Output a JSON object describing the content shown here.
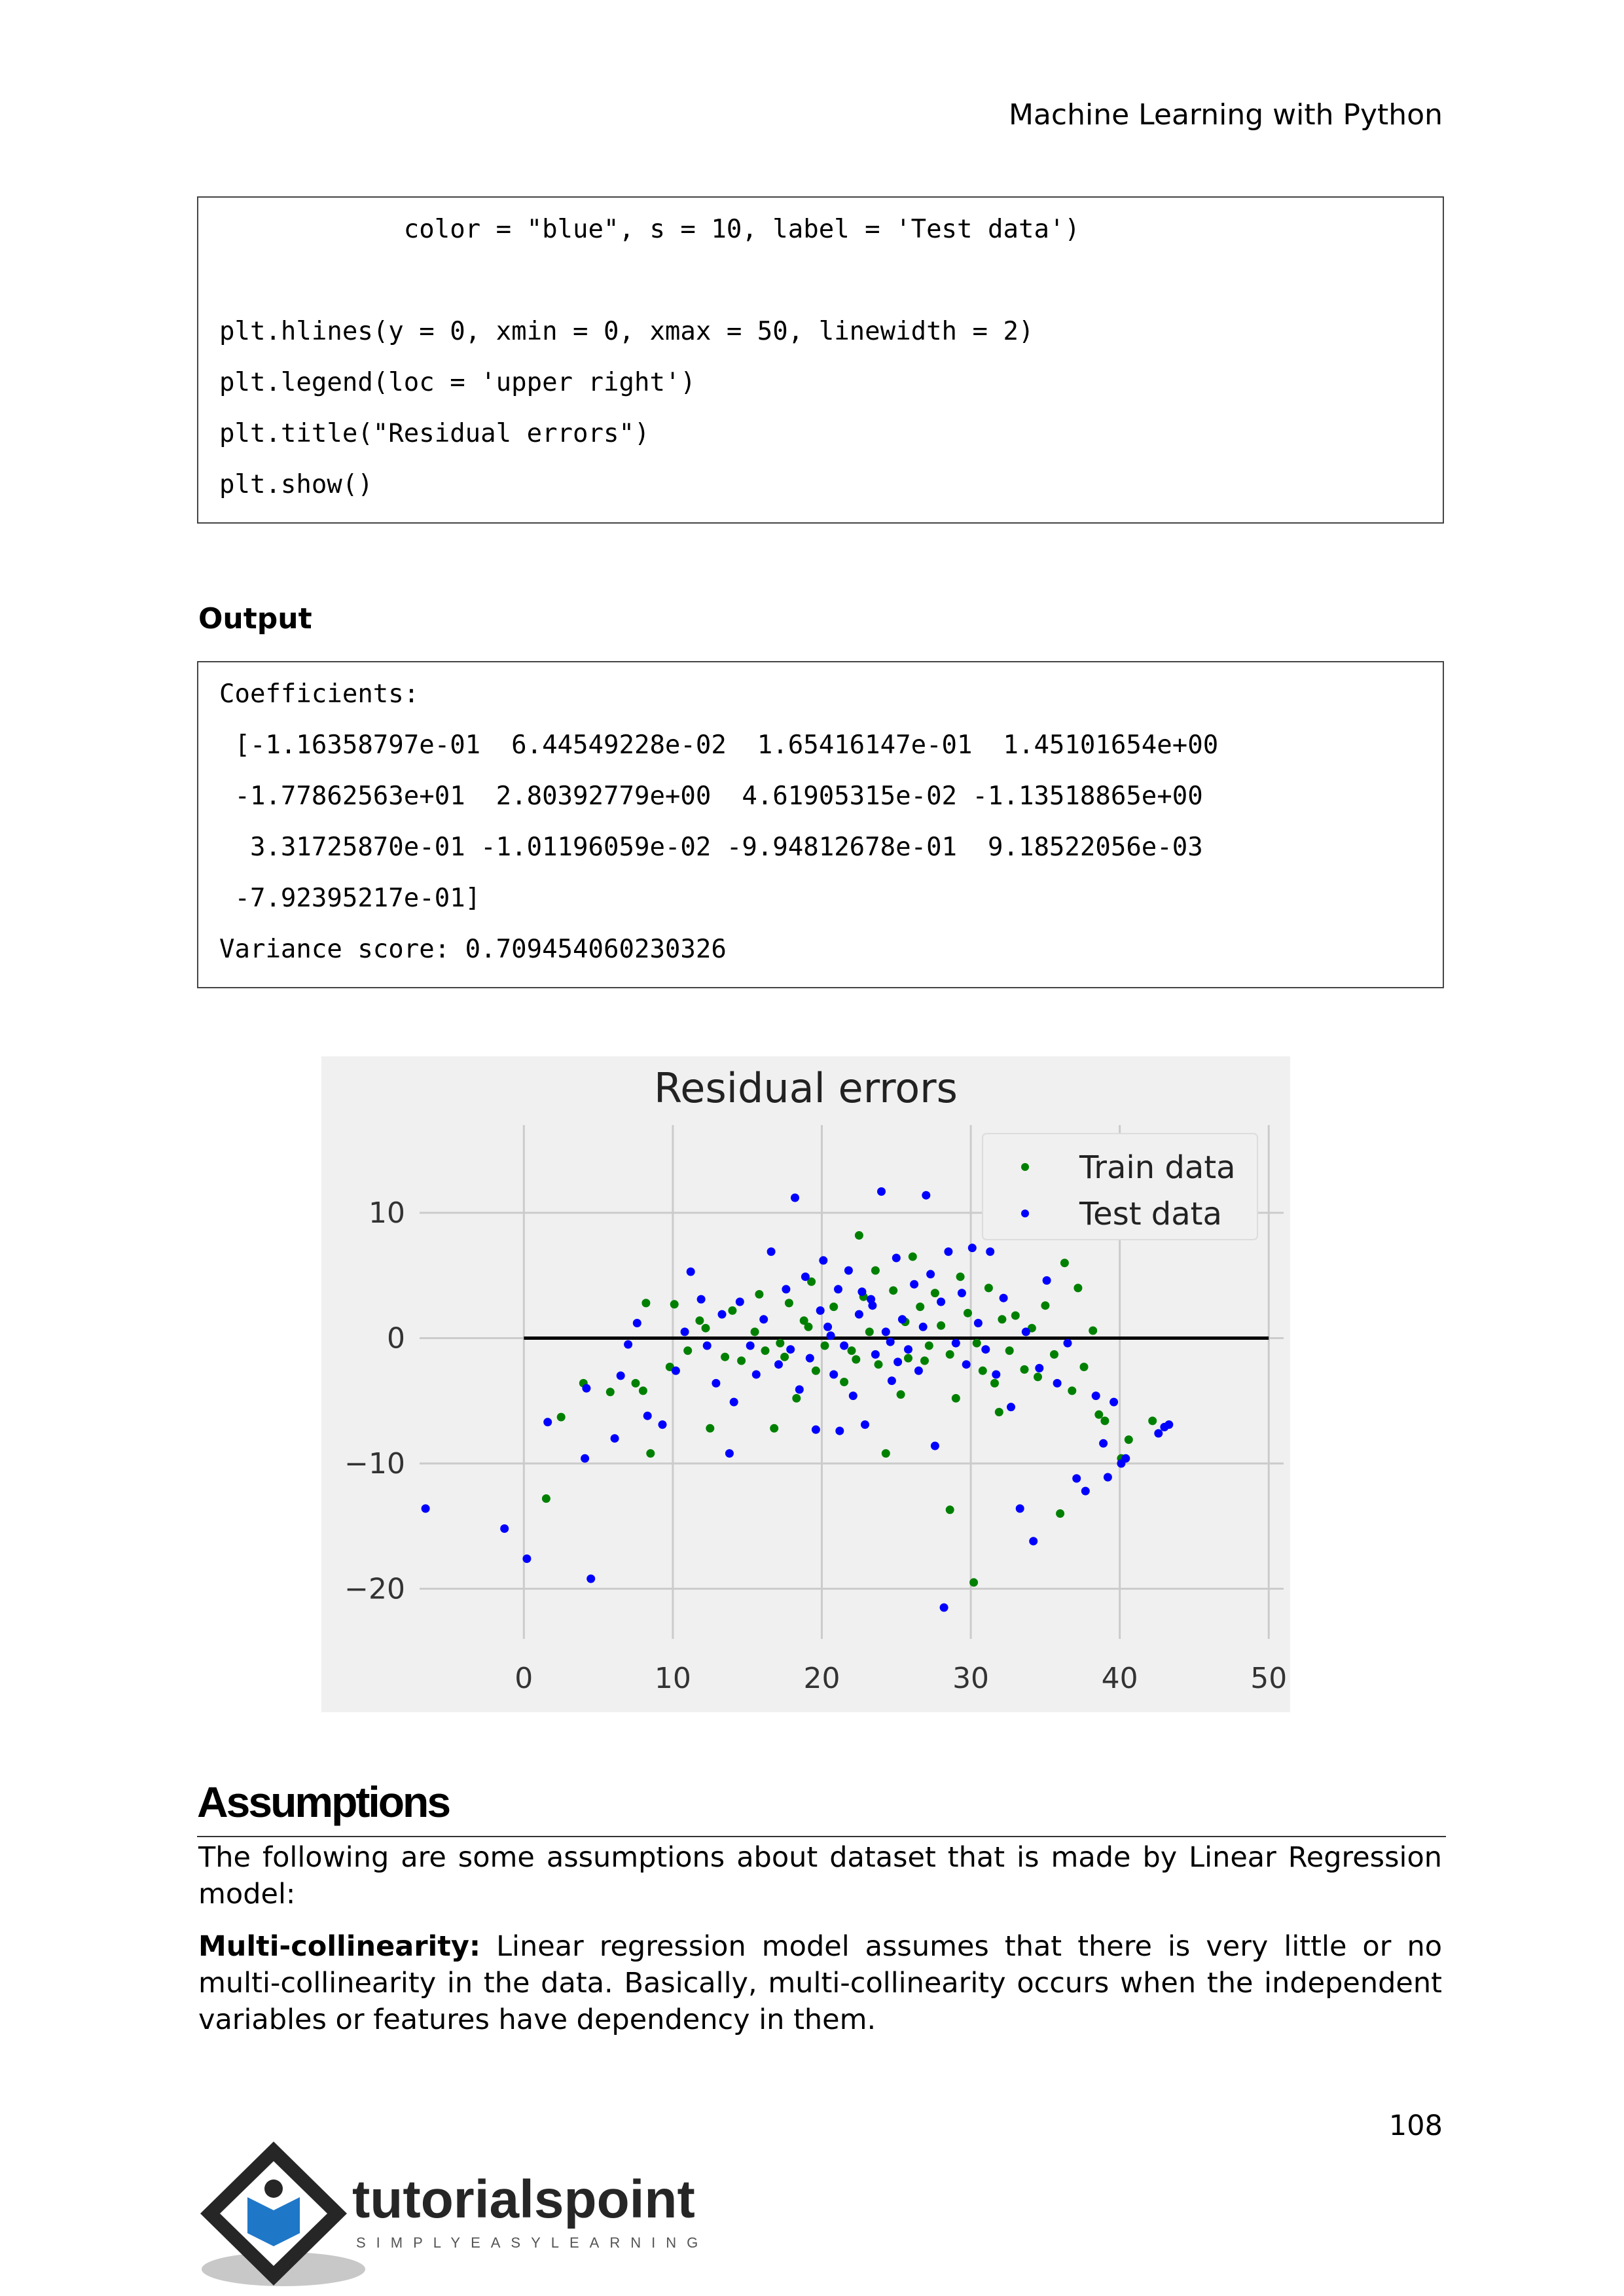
{
  "header": {
    "running_title": "Machine Learning with Python"
  },
  "code_block": {
    "lines": [
      "            color = \"blue\", s = 10, label = 'Test data')",
      "",
      "plt.hlines(y = 0, xmin = 0, xmax = 50, linewidth = 2)",
      "plt.legend(loc = 'upper right')",
      "plt.title(\"Residual errors\")",
      "plt.show()"
    ]
  },
  "output_label": "Output",
  "output_block": {
    "lines": [
      "Coefficients:",
      " [-1.16358797e-01  6.44549228e-02  1.65416147e-01  1.45101654e+00",
      " -1.77862563e+01  2.80392779e+00  4.61905315e-02 -1.13518865e+00",
      "  3.31725870e-01 -1.01196059e-02 -9.94812678e-01  9.18522056e-03",
      " -7.92395217e-01]",
      "Variance score: 0.709454060230326"
    ]
  },
  "chart_data": {
    "type": "scatter",
    "title": "Residual errors",
    "xlabel": "",
    "ylabel": "",
    "xlim": [
      -7,
      51
    ],
    "ylim": [
      -24,
      17
    ],
    "xticks": [
      0,
      10,
      20,
      30,
      40,
      50
    ],
    "xtick_labels": [
      "0",
      "10",
      "20",
      "30",
      "40",
      "50"
    ],
    "yticks": [
      -20,
      -10,
      0,
      10
    ],
    "ytick_labels": [
      "−20",
      "−10",
      "0",
      "10"
    ],
    "grid": true,
    "legend_position": "upper right",
    "hline": {
      "y": 0,
      "xmin": 0,
      "xmax": 50,
      "color": "#000000"
    },
    "series": [
      {
        "name": "Train data",
        "color": "#008000",
        "points": [
          [
            1.5,
            -12.8
          ],
          [
            2.5,
            -6.3
          ],
          [
            4,
            -3.6
          ],
          [
            5.8,
            -4.3
          ],
          [
            7.5,
            -3.6
          ],
          [
            8,
            -4.2
          ],
          [
            8.5,
            -9.2
          ],
          [
            8.2,
            2.8
          ],
          [
            9.8,
            -2.3
          ],
          [
            10.1,
            2.7
          ],
          [
            11,
            -1
          ],
          [
            11.8,
            1.4
          ],
          [
            12.2,
            0.8
          ],
          [
            12.5,
            -7.2
          ],
          [
            13.5,
            -1.5
          ],
          [
            14,
            2.2
          ],
          [
            14.6,
            -1.8
          ],
          [
            15.5,
            0.5
          ],
          [
            15.8,
            3.5
          ],
          [
            16.2,
            -1
          ],
          [
            16.8,
            -7.2
          ],
          [
            17.5,
            -1.5
          ],
          [
            17.8,
            2.8
          ],
          [
            18.3,
            -4.8
          ],
          [
            18.8,
            1.4
          ],
          [
            19.3,
            4.5
          ],
          [
            19.6,
            -2.6
          ],
          [
            20.2,
            -0.6
          ],
          [
            20.8,
            2.5
          ],
          [
            21.5,
            -3.5
          ],
          [
            22,
            -1
          ],
          [
            22.5,
            8.2
          ],
          [
            22.8,
            3.3
          ],
          [
            23.2,
            0.5
          ],
          [
            23.8,
            -2.1
          ],
          [
            24.3,
            -9.2
          ],
          [
            24.8,
            3.8
          ],
          [
            25.3,
            -4.5
          ],
          [
            25.8,
            -1.6
          ],
          [
            26.1,
            6.5
          ],
          [
            26.6,
            2.5
          ],
          [
            27.2,
            -0.6
          ],
          [
            27.6,
            3.6
          ],
          [
            28,
            1
          ],
          [
            28.6,
            -1.3
          ],
          [
            29,
            -4.8
          ],
          [
            29.3,
            4.9
          ],
          [
            29.8,
            2
          ],
          [
            30.2,
            -19.5
          ],
          [
            30.4,
            -0.4
          ],
          [
            30.8,
            -2.6
          ],
          [
            31.2,
            4
          ],
          [
            31.6,
            -3.6
          ],
          [
            32.1,
            1.5
          ],
          [
            32.6,
            -1
          ],
          [
            33,
            1.8
          ],
          [
            33.6,
            -2.5
          ],
          [
            34.1,
            0.8
          ],
          [
            34.5,
            -3.1
          ],
          [
            35,
            2.6
          ],
          [
            35.6,
            -1.3
          ],
          [
            36,
            -14
          ],
          [
            36.3,
            6
          ],
          [
            36.8,
            -4.2
          ],
          [
            37.2,
            4
          ],
          [
            37.6,
            -2.3
          ],
          [
            38.2,
            0.6
          ],
          [
            38.6,
            -6.1
          ],
          [
            39,
            -6.6
          ],
          [
            40.1,
            -9.6
          ],
          [
            40.6,
            -8.1
          ],
          [
            42.2,
            -6.6
          ],
          [
            28.6,
            -13.7
          ],
          [
            31.9,
            -5.9
          ],
          [
            25.6,
            1.3
          ],
          [
            22.3,
            -1.7
          ],
          [
            19.1,
            0.9
          ],
          [
            17.2,
            -0.4
          ],
          [
            23.6,
            5.4
          ],
          [
            26.9,
            -1.8
          ]
        ]
      },
      {
        "name": "Test data",
        "color": "#0000ff",
        "points": [
          [
            -6.6,
            -13.6
          ],
          [
            -1.3,
            -15.2
          ],
          [
            0.2,
            -17.6
          ],
          [
            1.6,
            -6.7
          ],
          [
            4.1,
            -9.6
          ],
          [
            4.5,
            -19.2
          ],
          [
            4.2,
            -4
          ],
          [
            6.1,
            -8
          ],
          [
            6.5,
            -3
          ],
          [
            7,
            -0.5
          ],
          [
            7.6,
            1.2
          ],
          [
            8.3,
            -6.2
          ],
          [
            9.3,
            -6.9
          ],
          [
            10.2,
            -2.6
          ],
          [
            10.8,
            0.5
          ],
          [
            11.2,
            5.3
          ],
          [
            11.9,
            3.1
          ],
          [
            12.3,
            -0.6
          ],
          [
            12.9,
            -3.6
          ],
          [
            13.3,
            1.9
          ],
          [
            13.8,
            -9.2
          ],
          [
            14.1,
            -5.1
          ],
          [
            14.5,
            2.9
          ],
          [
            15.2,
            -0.6
          ],
          [
            15.6,
            -2.9
          ],
          [
            16.1,
            1.5
          ],
          [
            16.6,
            6.9
          ],
          [
            17.1,
            -2.1
          ],
          [
            17.6,
            3.9
          ],
          [
            17.9,
            -0.9
          ],
          [
            18.2,
            11.2
          ],
          [
            18.5,
            -4.1
          ],
          [
            18.9,
            4.9
          ],
          [
            19.2,
            -1.6
          ],
          [
            19.6,
            -7.3
          ],
          [
            20.1,
            6.2
          ],
          [
            20.4,
            0.9
          ],
          [
            20.8,
            -2.9
          ],
          [
            21.1,
            3.9
          ],
          [
            21.5,
            -0.6
          ],
          [
            21.8,
            5.4
          ],
          [
            22.1,
            -4.6
          ],
          [
            22.5,
            1.9
          ],
          [
            22.9,
            -6.9
          ],
          [
            23.3,
            3.1
          ],
          [
            23.6,
            -1.3
          ],
          [
            24,
            11.7
          ],
          [
            24.3,
            0.5
          ],
          [
            24.7,
            -3.4
          ],
          [
            25,
            6.4
          ],
          [
            25.4,
            1.5
          ],
          [
            25.8,
            -0.9
          ],
          [
            26.2,
            4.3
          ],
          [
            26.5,
            -2.6
          ],
          [
            27,
            11.4
          ],
          [
            27.3,
            5.1
          ],
          [
            27.6,
            -8.6
          ],
          [
            28,
            2.9
          ],
          [
            28.2,
            -21.5
          ],
          [
            28.5,
            6.9
          ],
          [
            29,
            -0.4
          ],
          [
            29.4,
            3.6
          ],
          [
            29.7,
            -2.1
          ],
          [
            30.1,
            7.2
          ],
          [
            30.5,
            1.2
          ],
          [
            31,
            -0.9
          ],
          [
            31.3,
            6.9
          ],
          [
            31.7,
            -2.9
          ],
          [
            32.2,
            3.2
          ],
          [
            32.7,
            -5.5
          ],
          [
            33.1,
            8.9
          ],
          [
            33.3,
            -13.6
          ],
          [
            33.7,
            0.5
          ],
          [
            34.2,
            -16.2
          ],
          [
            34.6,
            -2.4
          ],
          [
            35.1,
            4.6
          ],
          [
            35.4,
            8.3
          ],
          [
            35.8,
            -3.6
          ],
          [
            36.5,
            -0.4
          ],
          [
            37.1,
            -11.2
          ],
          [
            37.7,
            -12.2
          ],
          [
            38.4,
            -4.6
          ],
          [
            38.9,
            -8.4
          ],
          [
            39.2,
            -11.1
          ],
          [
            39.6,
            -5.1
          ],
          [
            40.1,
            -10
          ],
          [
            40.4,
            -9.6
          ],
          [
            42.6,
            -7.6
          ],
          [
            43,
            -7.1
          ],
          [
            43.3,
            -6.9
          ],
          [
            21.2,
            -7.4
          ],
          [
            23.4,
            2.6
          ],
          [
            20.6,
            0.2
          ],
          [
            24.6,
            -0.3
          ],
          [
            26.8,
            0.9
          ],
          [
            19.9,
            2.2
          ],
          [
            22.7,
            3.7
          ],
          [
            25.1,
            -1.9
          ]
        ]
      }
    ]
  },
  "assumptions": {
    "heading": "Assumptions",
    "intro": "The following are some assumptions about dataset that is made by Linear Regression model:",
    "multi_label": "Multi-collinearity:",
    "multi_text": " Linear regression model assumes that there is very little or no multi-collinearity in the data. Basically, multi-collinearity occurs when the independent variables or features have dependency in them."
  },
  "footer": {
    "page_number": "108",
    "logo_text": "tutorialspoint",
    "logo_tagline": "SIMPLYEASYLEARNING"
  }
}
